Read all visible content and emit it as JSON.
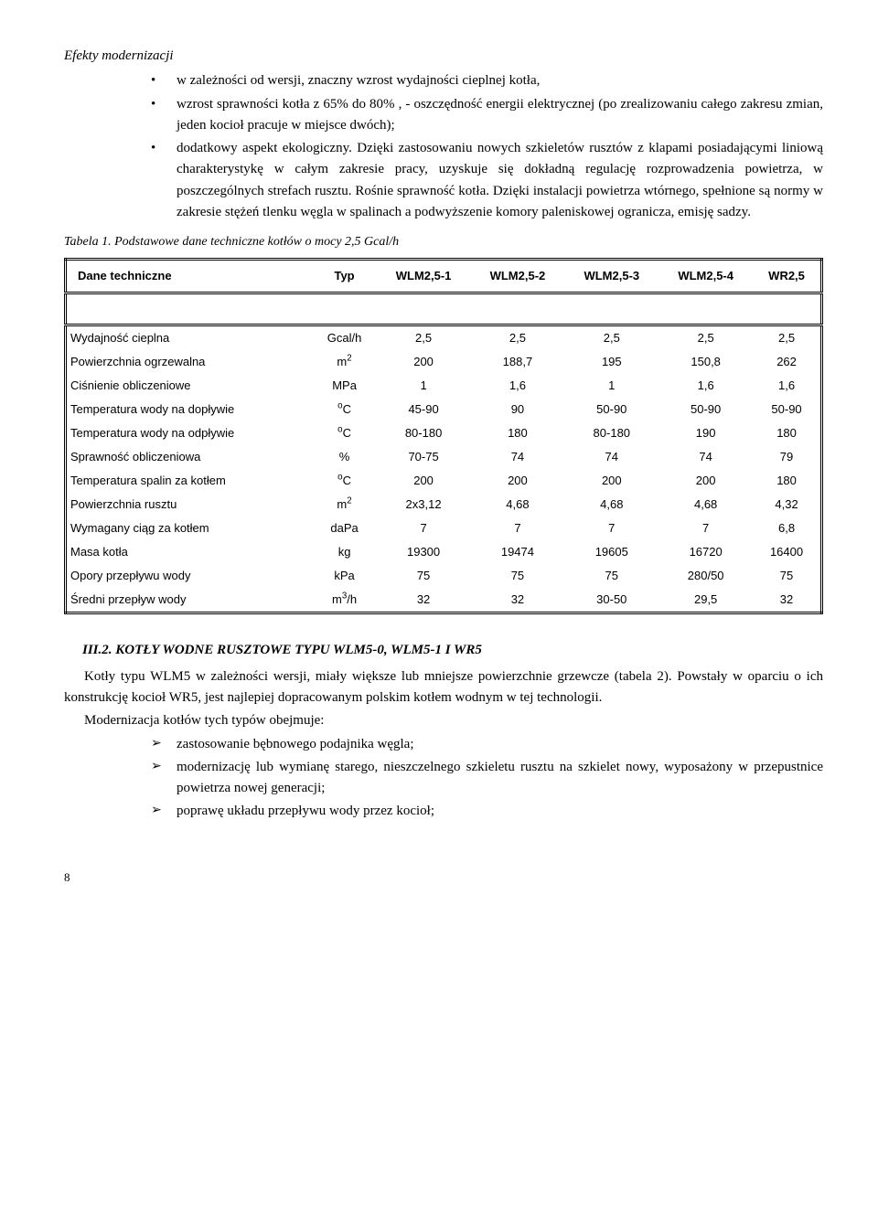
{
  "heading1": "Efekty modernizacji",
  "bullets": [
    "w zależności od wersji, znaczny wzrost wydajności cieplnej kotła,",
    "wzrost sprawności kotła z 65% do 80% , - oszczędność energii elektrycznej (po zrealizowaniu całego zakresu zmian, jeden kocioł pracuje w miejsce dwóch);",
    "dodatkowy aspekt ekologiczny. Dzięki zastosowaniu nowych szkieletów rusztów z klapami posiadającymi liniową charakterystykę w całym zakresie pracy, uzyskuje się dokładną regulację rozprowadzenia powietrza, w poszczególnych strefach rusztu. Rośnie sprawność kotła. Dzięki instalacji powietrza wtórnego, spełnione są normy w zakresie stężeń tlenku węgla w spalinach a podwyższenie komory paleniskowej ogranicza, emisję sadzy."
  ],
  "table_caption": "Tabela 1. Podstawowe dane techniczne kotłów o mocy 2,5 Gcal/h",
  "table": {
    "header": [
      "Dane techniczne",
      "Typ",
      "WLM2,5-1",
      "WLM2,5-2",
      "WLM2,5-3",
      "WLM2,5-4",
      "WR2,5"
    ],
    "rows": [
      {
        "label": "Wydajność cieplna",
        "unit": "Gcal/h",
        "vals": [
          "2,5",
          "2,5",
          "2,5",
          "2,5",
          "2,5"
        ]
      },
      {
        "label": "Powierzchnia ogrzewalna",
        "unit": "m²",
        "vals": [
          "200",
          "188,7",
          "195",
          "150,8",
          "262"
        ]
      },
      {
        "label": "Ciśnienie obliczeniowe",
        "unit": "MPa",
        "vals": [
          "1",
          "1,6",
          "1",
          "1,6",
          "1,6"
        ]
      },
      {
        "label": "Temperatura wody na dopływie",
        "unit": "°C",
        "vals": [
          "45-90",
          "90",
          "50-90",
          "50-90",
          "50-90"
        ]
      },
      {
        "label": "Temperatura wody na odpływie",
        "unit": "°C",
        "vals": [
          "80-180",
          "180",
          "80-180",
          "190",
          "180"
        ]
      },
      {
        "label": "Sprawność obliczeniowa",
        "unit": "%",
        "vals": [
          "70-75",
          "74",
          "74",
          "74",
          "79"
        ]
      },
      {
        "label": "Temperatura spalin za kotłem",
        "unit": "°C",
        "vals": [
          "200",
          "200",
          "200",
          "200",
          "180"
        ]
      },
      {
        "label": "Powierzchnia rusztu",
        "unit": "m²",
        "vals": [
          "2x3,12",
          "4,68",
          "4,68",
          "4,68",
          "4,32"
        ]
      },
      {
        "label": "Wymagany ciąg za kotłem",
        "unit": "daPa",
        "vals": [
          "7",
          "7",
          "7",
          "7",
          "6,8"
        ]
      },
      {
        "label": "Masa kotła",
        "unit": "kg",
        "vals": [
          "19300",
          "19474",
          "19605",
          "16720",
          "16400"
        ]
      },
      {
        "label": "Opory przepływu wody",
        "unit": "kPa",
        "vals": [
          "75",
          "75",
          "75",
          "280/50",
          "75"
        ]
      },
      {
        "label": "Średni przepływ wody",
        "unit": "m³/h",
        "vals": [
          "32",
          "32",
          "30-50",
          "29,5",
          "32"
        ]
      }
    ],
    "unit_html": {
      "m²": "m<sup>2</sup>",
      "°C": "<sup>o</sup>C",
      "m³/h": "m<sup>3</sup>/h"
    }
  },
  "section2_heading": "III.2. KOTŁY WODNE RUSZTOWE TYPU WLM5-0, WLM5-1 I WR5",
  "para1": "Kotły typu WLM5 w zależności wersji, miały większe lub mniejsze powierzchnie grzewcze (tabela 2). Powstały w oparciu o ich konstrukcję kocioł WR5, jest najlepiej dopracowanym polskim kotłem wodnym w tej technologii.",
  "para2": "Modernizacja kotłów tych typów obejmuje:",
  "arrows": [
    "zastosowanie bębnowego podajnika węgla;",
    "modernizację lub wymianę starego, nieszczelnego szkieletu rusztu na szkielet nowy, wyposażony w przepustnice powietrza nowej generacji;",
    "poprawę układu przepływu wody przez kocioł;"
  ],
  "page_number": "8"
}
